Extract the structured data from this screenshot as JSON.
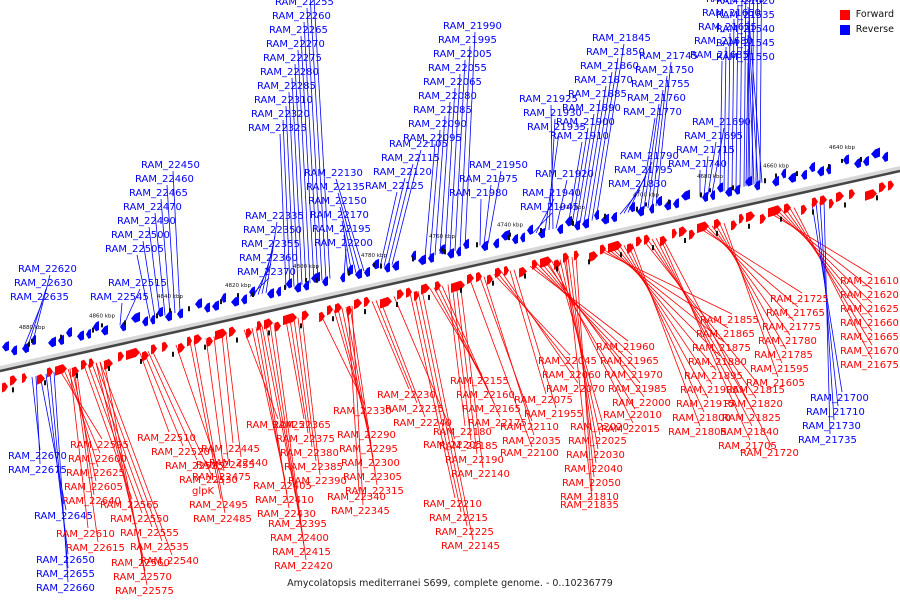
{
  "title": "Amycolatopsis mediterranei S699, complete genome. - 0..10236779",
  "legend": {
    "forward_label": "Forward",
    "reverse_label": "Reverse",
    "forward_color": "#ff0000",
    "reverse_color": "#0000ff"
  },
  "scale_labels": [
    "4880 kbp",
    "4860 kbp",
    "4840 kbp",
    "4820 kbp",
    "4800 kbp",
    "4780 kbp",
    "4760 kbp",
    "4740 kbp",
    "4720 kbp",
    "4700 kbp",
    "4680 kbp",
    "4660 kbp",
    "4640 kbp"
  ],
  "reverse_upper": [
    "RAM_22635",
    "RAM_22630",
    "RAM_22620",
    "RAM_22545",
    "RAM_22515",
    "RAM_22505",
    "RAM_22500",
    "RAM_22490",
    "RAM_22470",
    "RAM_22465",
    "RAM_22460",
    "RAM_22450",
    "RAM_22370",
    "RAM_22360",
    "RAM_22355",
    "RAM_22350",
    "RAM_22335",
    "RAM_22325",
    "RAM_22320",
    "RAM_22310",
    "RAM_22285",
    "RAM_22280",
    "RAM_22275",
    "RAM_22270",
    "RAM_22265",
    "RAM_22260",
    "RAM_22255",
    "RAM_22250",
    "RAM_22245",
    "RAM_22200",
    "RAM_22195",
    "RAM_22170",
    "RAM_22150",
    "RAM_22135",
    "RAM_22130",
    "RAM_22125",
    "RAM_22120",
    "RAM_22115",
    "RAM_22105",
    "RAM_22095",
    "RAM_22090",
    "RAM_22085",
    "RAM_22080",
    "RAM_22065",
    "RAM_22055",
    "RAM_22005",
    "RAM_21995",
    "RAM_21990",
    "RAM_21980",
    "RAM_21975",
    "RAM_21950",
    "RAM_21945",
    "RAM_21940",
    "RAM_21935",
    "RAM_21930",
    "RAM_21925",
    "RAM_21920",
    "RAM_21910",
    "RAM_21900",
    "RAM_21890",
    "RAM_21885",
    "RAM_21870",
    "RAM_21860",
    "RAM_21850",
    "RAM_21845",
    "RAM_21830",
    "RAM_21795",
    "RAM_21790",
    "RAM_21770",
    "RAM_21760",
    "RAM_21755",
    "RAM_21750",
    "RAM_21745",
    "RAM_21740",
    "RAM_21715",
    "RAM_21695",
    "RAM_21690",
    "RAM_21685",
    "RAM_21680",
    "RAM_21655",
    "RAM_21650",
    "RAM_21645",
    "RAM_21640",
    "RAM_21635",
    "RAM_21630",
    "RAM_21615",
    "RAM_21600",
    "RAM_21570",
    "RAM_21550",
    "RAM_21545",
    "RAM_21540",
    "RAM_21535",
    "RAM_21520"
  ],
  "forward_lower": [
    "RAM_22595",
    "RAM_22600",
    "RAM_22625",
    "RAM_22605",
    "RAM_22640",
    "RAM_22565",
    "RAM_22550",
    "RAM_22555",
    "RAM_22535",
    "RAM_22540",
    "RAM_22610",
    "RAM_22615",
    "RAM_22560",
    "RAM_22570",
    "RAM_22575",
    "RAM_22510",
    "RAM_22520",
    "RAM_22525",
    "RAM_22530",
    "glpK",
    "RAM_22495",
    "RAM_22485",
    "RAM_22475",
    "RAM_22455",
    "RAM_22445",
    "RAM_22440",
    "RAM_22425",
    "RAM_22405",
    "RAM_22410",
    "RAM_22430",
    "RAM_22395",
    "RAM_22400",
    "RAM_22415",
    "RAM_22420",
    "RAM_22365",
    "RAM_22375",
    "RAM_22380",
    "RAM_22385",
    "RAM_22390",
    "RAM_22330",
    "RAM_22290",
    "RAM_22295",
    "RAM_22300",
    "RAM_22305",
    "RAM_22315",
    "RAM_22340",
    "RAM_22345",
    "RAM_22230",
    "RAM_22235",
    "RAM_22240",
    "RAM_22205",
    "RAM_22210",
    "RAM_22215",
    "RAM_22225",
    "RAM_22145",
    "RAM_22155",
    "RAM_22160",
    "RAM_22165",
    "RAM_22175",
    "RAM_22180",
    "RAM_22185",
    "RAM_22190",
    "RAM_22140",
    "RAM_22100",
    "RAM_22110",
    "RAM_22035",
    "RAM_22045",
    "RAM_22060",
    "RAM_22070",
    "RAM_22075",
    "RAM_21955",
    "RAM_21960",
    "RAM_21965",
    "RAM_21970",
    "RAM_21985",
    "RAM_22000",
    "RAM_22010",
    "RAM_22015",
    "RAM_22020",
    "RAM_22025",
    "RAM_22030",
    "RAM_22040",
    "RAM_22050",
    "RAM_21810",
    "RAM_21835",
    "RAM_21855",
    "RAM_21865",
    "RAM_21875",
    "RAM_21880",
    "RAM_21895",
    "RAM_21905",
    "RAM_21915",
    "RAM_21800",
    "RAM_21805",
    "RAM_21815",
    "RAM_21820",
    "RAM_21825",
    "RAM_21840",
    "RAM_21705",
    "RAM_21720",
    "RAM_21725",
    "RAM_21765",
    "RAM_21775",
    "RAM_21780",
    "RAM_21785",
    "RAM_21595",
    "RAM_21605",
    "RAM_21610",
    "RAM_21620",
    "RAM_21625",
    "RAM_21660",
    "RAM_21665",
    "RAM_21670",
    "RAM_21675"
  ],
  "reverse_lower": [
    "RAM_22670",
    "RAM_22675",
    "RAM_22645",
    "RAM_22650",
    "RAM_22655",
    "RAM_22660",
    "RAM_21700",
    "RAM_21710",
    "RAM_21730",
    "RAM_21735"
  ]
}
